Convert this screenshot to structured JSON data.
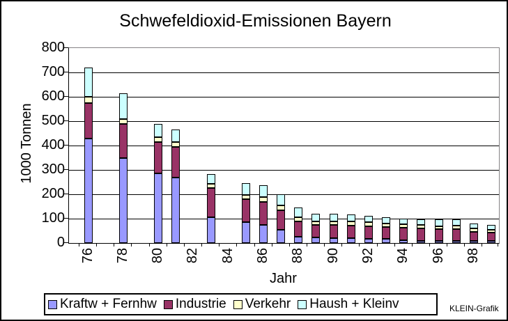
{
  "credit": "KLEIN-Grafik",
  "chart_data": {
    "type": "bar",
    "stacked": true,
    "title": "Schwefeldioxid-Emissionen Bayern",
    "xlabel": "Jahr",
    "ylabel": "1000 Tonnen",
    "ylim": [
      0,
      800
    ],
    "y_ticks": [
      0,
      100,
      200,
      300,
      400,
      500,
      600,
      700,
      800
    ],
    "x_tick_labels": [
      "76",
      "78",
      "80",
      "82",
      "84",
      "86",
      "88",
      "90",
      "92",
      "94",
      "96",
      "98"
    ],
    "categories": [
      "76",
      "78",
      "80",
      "81",
      "83",
      "85",
      "86",
      "87",
      "88",
      "89",
      "90",
      "91",
      "92",
      "93",
      "94",
      "95",
      "96",
      "97",
      "98",
      "99"
    ],
    "first_axis_year": 76,
    "last_axis_year": 99,
    "series": [
      {
        "name": "Kraftw + Fernhw",
        "color": "#9999FF",
        "values": [
          430,
          350,
          285,
          270,
          105,
          85,
          75,
          55,
          25,
          22,
          20,
          20,
          18,
          16,
          11,
          10,
          10,
          10,
          9,
          9
        ]
      },
      {
        "name": "Industrie",
        "color": "#993366",
        "values": [
          145,
          140,
          130,
          125,
          120,
          95,
          95,
          80,
          63,
          52,
          55,
          52,
          52,
          50,
          52,
          49,
          46,
          48,
          38,
          34
        ]
      },
      {
        "name": "Verkehr",
        "color": "#FFFFCC",
        "values": [
          25,
          20,
          20,
          20,
          18,
          16,
          18,
          20,
          18,
          16,
          15,
          16,
          15,
          13,
          14,
          14,
          14,
          14,
          12,
          11
        ]
      },
      {
        "name": "Haush + Kleinv",
        "color": "#CCFFFF",
        "values": [
          120,
          105,
          55,
          50,
          40,
          50,
          50,
          45,
          39,
          30,
          30,
          29,
          26,
          27,
          23,
          23,
          26,
          24,
          21,
          21
        ]
      }
    ],
    "legend_position": "bottom",
    "grid": true,
    "colors": {
      "gridline": "#000000",
      "plot_border": "#848284",
      "bar_border": "#000000",
      "background": "#FFFFFF",
      "frame_border": "#000000"
    }
  }
}
